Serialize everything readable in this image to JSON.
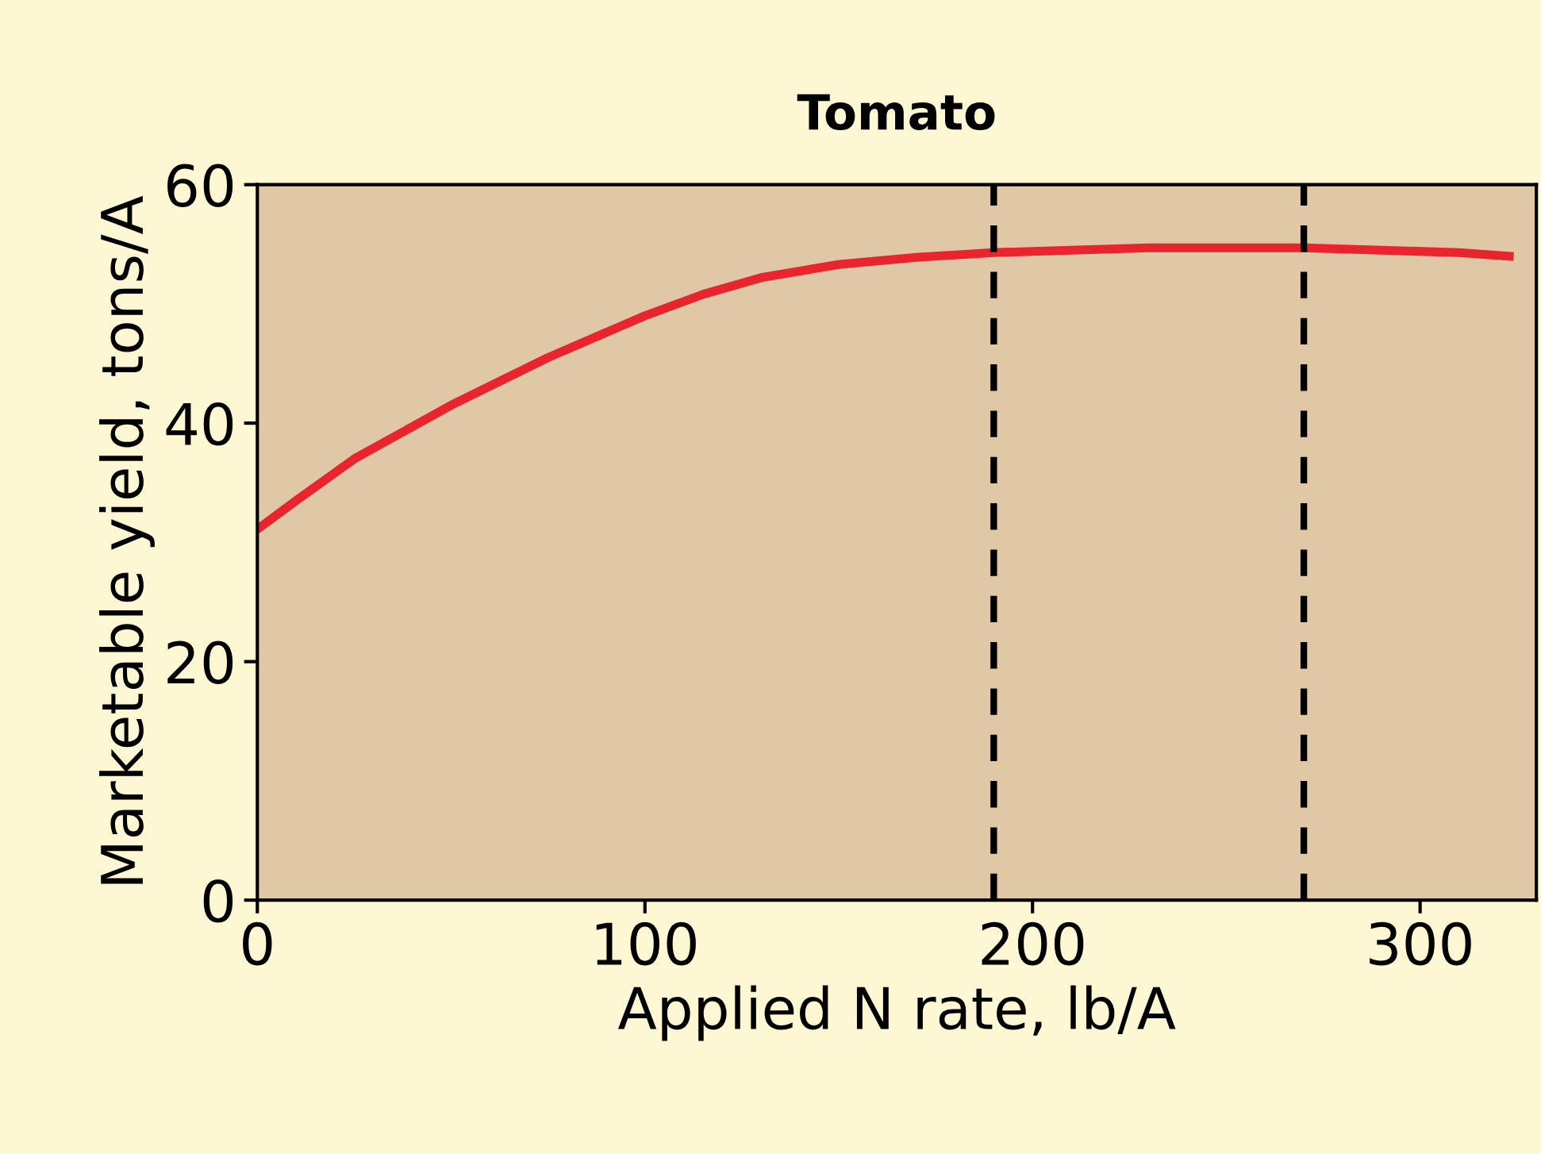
{
  "chart_data": {
    "type": "line",
    "title": "Tomato",
    "xlabel": "Applied N rate, lb/A",
    "ylabel": "Marketable yield, tons/A",
    "series": [
      {
        "color": "#e8242c",
        "x": [
          0,
          10,
          25,
          50,
          75,
          100,
          115,
          130,
          150,
          170,
          190,
          210,
          230,
          250,
          270,
          290,
          310,
          323
        ],
        "values": [
          31.1,
          33.5,
          37.0,
          41.5,
          45.5,
          49.0,
          50.8,
          52.2,
          53.3,
          53.9,
          54.3,
          54.5,
          54.7,
          54.7,
          54.7,
          54.5,
          54.3,
          54.0
        ]
      }
    ],
    "xlim": [
      0,
      330
    ],
    "xticks": [
      0,
      100,
      200,
      300
    ],
    "ylim": [
      0,
      60
    ],
    "yticks": [
      0,
      20,
      40,
      60
    ],
    "grid": false,
    "marker": "none",
    "line_style": "solid",
    "ref_lines": [
      {
        "axis": "x",
        "value": 190,
        "label": null,
        "color": "#000000",
        "line_style": "dashed"
      },
      {
        "axis": "x",
        "value": 270,
        "label": null,
        "color": "#000000",
        "line_style": "dashed"
      }
    ]
  }
}
